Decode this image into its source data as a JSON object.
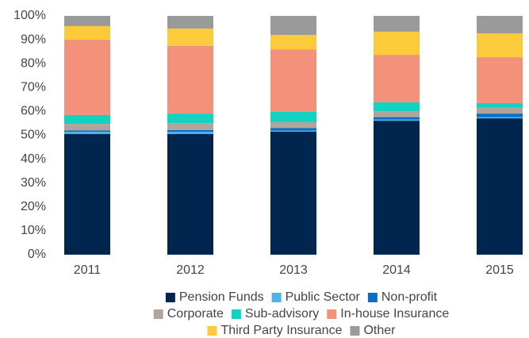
{
  "chart_data": {
    "type": "stacked_bar",
    "categories": [
      "2011",
      "2012",
      "2013",
      "2014",
      "2015"
    ],
    "series": [
      {
        "name": "Pension Funds",
        "color": "#002650",
        "values": [
          50.5,
          50.5,
          51.5,
          56.1,
          57.1
        ]
      },
      {
        "name": "Public Sector",
        "color": "#4db3e6",
        "values": [
          1,
          1,
          0.5,
          0.5,
          0.5
        ]
      },
      {
        "name": "Non-profit",
        "color": "#0a6ec8",
        "values": [
          0.5,
          0.7,
          1,
          1,
          1.5
        ]
      },
      {
        "name": "Corporate",
        "color": "#b0a49c",
        "values": [
          2.8,
          2.9,
          2.5,
          2.5,
          2.4
        ]
      },
      {
        "name": "Sub-advisory",
        "color": "#14d2c2",
        "values": [
          3.7,
          4,
          4.3,
          3.7,
          2
        ]
      },
      {
        "name": "In-house Insurance",
        "color": "#f4917a",
        "values": [
          31.5,
          28.3,
          26.2,
          19.9,
          19.2
        ]
      },
      {
        "name": "Third Party Insurance",
        "color": "#fccb3c",
        "values": [
          5.7,
          7.3,
          6,
          9.7,
          10
        ]
      },
      {
        "name": "Other",
        "color": "#9a9a9a",
        "values": [
          4.3,
          5.3,
          8,
          6.6,
          7.3
        ]
      }
    ],
    "ylim": [
      0,
      100
    ],
    "yticks": [
      {
        "value": 0,
        "label": "0%"
      },
      {
        "value": 10,
        "label": "10%"
      },
      {
        "value": 20,
        "label": "20%"
      },
      {
        "value": 30,
        "label": "30%"
      },
      {
        "value": 40,
        "label": "40%"
      },
      {
        "value": 50,
        "label": "50%"
      },
      {
        "value": 60,
        "label": "60%"
      },
      {
        "value": 70,
        "label": "70%"
      },
      {
        "value": 80,
        "label": "80%"
      },
      {
        "value": 90,
        "label": "90%"
      },
      {
        "value": 100,
        "label": "100%"
      }
    ],
    "grid": false
  }
}
